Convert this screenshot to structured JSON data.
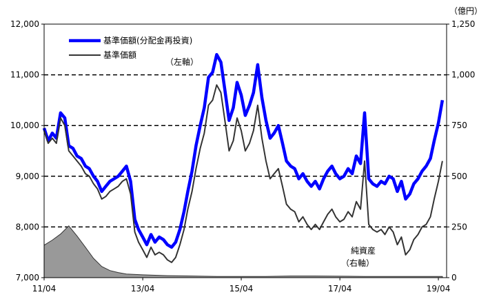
{
  "chart_data": {
    "type": "line",
    "x_tick_labels": [
      "11/04",
      "13/04",
      "15/04",
      "17/04",
      "19/04"
    ],
    "left_axis": {
      "ylim": [
        7000,
        12000
      ],
      "tick_labels": [
        "7,000",
        "8,000",
        "9,000",
        "10,000",
        "11,000",
        "12,000"
      ],
      "ticks": [
        7000,
        8000,
        9000,
        10000,
        11000,
        12000
      ],
      "annotation": "（左軸）"
    },
    "right_axis": {
      "ylim": [
        0,
        1250
      ],
      "tick_labels": [
        "0",
        "250",
        "500",
        "750",
        "1,000",
        "1,250"
      ],
      "unit": "（億円）",
      "annotation_line1": "純資産",
      "annotation_line2": "（右軸）"
    },
    "gridlines": "dashed horizontal",
    "legend": "top-left",
    "series": [
      {
        "name": "基準価額(分配金再投資)",
        "color": "#0000ff",
        "axis": "left",
        "points": [
          [
            "2011-04",
            9950
          ],
          [
            "2011-05",
            9700
          ],
          [
            "2011-06",
            9850
          ],
          [
            "2011-07",
            9750
          ],
          [
            "2011-08",
            10250
          ],
          [
            "2011-09",
            10150
          ],
          [
            "2011-10",
            9600
          ],
          [
            "2011-11",
            9550
          ],
          [
            "2011-12",
            9400
          ],
          [
            "2012-01",
            9350
          ],
          [
            "2012-02",
            9200
          ],
          [
            "2012-03",
            9150
          ],
          [
            "2012-04",
            9000
          ],
          [
            "2012-05",
            8900
          ],
          [
            "2012-06",
            8700
          ],
          [
            "2012-07",
            8800
          ],
          [
            "2012-08",
            8900
          ],
          [
            "2012-09",
            8950
          ],
          [
            "2012-10",
            9000
          ],
          [
            "2012-11",
            9100
          ],
          [
            "2012-12",
            9200
          ],
          [
            "2013-01",
            8900
          ],
          [
            "2013-02",
            8150
          ],
          [
            "2013-03",
            7950
          ],
          [
            "2013-04",
            7800
          ],
          [
            "2013-05",
            7650
          ],
          [
            "2013-06",
            7850
          ],
          [
            "2013-07",
            7700
          ],
          [
            "2013-08",
            7800
          ],
          [
            "2013-09",
            7750
          ],
          [
            "2013-10",
            7650
          ],
          [
            "2013-11",
            7600
          ],
          [
            "2013-12",
            7700
          ],
          [
            "2014-01",
            7950
          ],
          [
            "2014-02",
            8300
          ],
          [
            "2014-03",
            8700
          ],
          [
            "2014-04",
            9100
          ],
          [
            "2014-05",
            9600
          ],
          [
            "2014-06",
            10000
          ],
          [
            "2014-07",
            10350
          ],
          [
            "2014-08",
            10950
          ],
          [
            "2014-09",
            11050
          ],
          [
            "2014-10",
            11400
          ],
          [
            "2014-11",
            11250
          ],
          [
            "2014-12",
            10700
          ],
          [
            "2015-01",
            10100
          ],
          [
            "2015-02",
            10350
          ],
          [
            "2015-03",
            10850
          ],
          [
            "2015-04",
            10600
          ],
          [
            "2015-05",
            10200
          ],
          [
            "2015-06",
            10400
          ],
          [
            "2015-07",
            10650
          ],
          [
            "2015-08",
            11200
          ],
          [
            "2015-09",
            10550
          ],
          [
            "2015-10",
            10100
          ],
          [
            "2015-11",
            9750
          ],
          [
            "2015-12",
            9850
          ],
          [
            "2016-01",
            10000
          ],
          [
            "2016-02",
            9650
          ],
          [
            "2016-03",
            9300
          ],
          [
            "2016-04",
            9200
          ],
          [
            "2016-05",
            9150
          ],
          [
            "2016-06",
            8950
          ],
          [
            "2016-07",
            9050
          ],
          [
            "2016-08",
            8900
          ],
          [
            "2016-09",
            8800
          ],
          [
            "2016-10",
            8900
          ],
          [
            "2016-11",
            8750
          ],
          [
            "2016-12",
            8950
          ],
          [
            "2017-01",
            9100
          ],
          [
            "2017-02",
            9200
          ],
          [
            "2017-03",
            9050
          ],
          [
            "2017-04",
            8950
          ],
          [
            "2017-05",
            9000
          ],
          [
            "2017-06",
            9150
          ],
          [
            "2017-07",
            9050
          ],
          [
            "2017-08",
            9400
          ],
          [
            "2017-09",
            9250
          ],
          [
            "2017-10",
            10250
          ],
          [
            "2017-11",
            8950
          ],
          [
            "2017-12",
            8850
          ],
          [
            "2018-01",
            8800
          ],
          [
            "2018-02",
            8900
          ],
          [
            "2018-03",
            8850
          ],
          [
            "2018-04",
            9000
          ],
          [
            "2018-05",
            8950
          ],
          [
            "2018-06",
            8700
          ],
          [
            "2018-07",
            8900
          ],
          [
            "2018-08",
            8550
          ],
          [
            "2018-09",
            8650
          ],
          [
            "2018-10",
            8850
          ],
          [
            "2018-11",
            8950
          ],
          [
            "2018-12",
            9100
          ],
          [
            "2019-01",
            9200
          ],
          [
            "2019-02",
            9350
          ],
          [
            "2019-03",
            9700
          ],
          [
            "2019-04",
            10050
          ],
          [
            "2019-05",
            10500
          ]
        ]
      },
      {
        "name": "基準価額",
        "color": "#333333",
        "axis": "left",
        "points": [
          [
            "2011-04",
            9900
          ],
          [
            "2011-05",
            9650
          ],
          [
            "2011-06",
            9750
          ],
          [
            "2011-07",
            9650
          ],
          [
            "2011-08",
            10150
          ],
          [
            "2011-09",
            10000
          ],
          [
            "2011-10",
            9500
          ],
          [
            "2011-11",
            9400
          ],
          [
            "2011-12",
            9300
          ],
          [
            "2012-01",
            9200
          ],
          [
            "2012-02",
            9050
          ],
          [
            "2012-03",
            9000
          ],
          [
            "2012-04",
            8850
          ],
          [
            "2012-05",
            8750
          ],
          [
            "2012-06",
            8550
          ],
          [
            "2012-07",
            8600
          ],
          [
            "2012-08",
            8700
          ],
          [
            "2012-09",
            8750
          ],
          [
            "2012-10",
            8800
          ],
          [
            "2012-11",
            8900
          ],
          [
            "2012-12",
            8950
          ],
          [
            "2013-01",
            8650
          ],
          [
            "2013-02",
            7900
          ],
          [
            "2013-03",
            7700
          ],
          [
            "2013-04",
            7550
          ],
          [
            "2013-05",
            7400
          ],
          [
            "2013-06",
            7600
          ],
          [
            "2013-07",
            7450
          ],
          [
            "2013-08",
            7500
          ],
          [
            "2013-09",
            7450
          ],
          [
            "2013-10",
            7350
          ],
          [
            "2013-11",
            7300
          ],
          [
            "2013-12",
            7400
          ],
          [
            "2014-01",
            7650
          ],
          [
            "2014-02",
            7950
          ],
          [
            "2014-03",
            8350
          ],
          [
            "2014-04",
            8700
          ],
          [
            "2014-05",
            9150
          ],
          [
            "2014-06",
            9550
          ],
          [
            "2014-07",
            9850
          ],
          [
            "2014-08",
            10400
          ],
          [
            "2014-09",
            10500
          ],
          [
            "2014-10",
            10800
          ],
          [
            "2014-11",
            10650
          ],
          [
            "2014-12",
            10100
          ],
          [
            "2015-01",
            9500
          ],
          [
            "2015-02",
            9700
          ],
          [
            "2015-03",
            10150
          ],
          [
            "2015-04",
            9900
          ],
          [
            "2015-05",
            9500
          ],
          [
            "2015-06",
            9650
          ],
          [
            "2015-07",
            9900
          ],
          [
            "2015-08",
            10400
          ],
          [
            "2015-09",
            9750
          ],
          [
            "2015-10",
            9300
          ],
          [
            "2015-11",
            8950
          ],
          [
            "2015-12",
            9050
          ],
          [
            "2016-01",
            9150
          ],
          [
            "2016-02",
            8800
          ],
          [
            "2016-03",
            8450
          ],
          [
            "2016-04",
            8350
          ],
          [
            "2016-05",
            8300
          ],
          [
            "2016-06",
            8100
          ],
          [
            "2016-07",
            8200
          ],
          [
            "2016-08",
            8050
          ],
          [
            "2016-09",
            7950
          ],
          [
            "2016-10",
            8050
          ],
          [
            "2016-11",
            7950
          ],
          [
            "2016-12",
            8100
          ],
          [
            "2017-01",
            8250
          ],
          [
            "2017-02",
            8350
          ],
          [
            "2017-03",
            8200
          ],
          [
            "2017-04",
            8100
          ],
          [
            "2017-05",
            8150
          ],
          [
            "2017-06",
            8300
          ],
          [
            "2017-07",
            8200
          ],
          [
            "2017-08",
            8500
          ],
          [
            "2017-09",
            8350
          ],
          [
            "2017-10",
            9300
          ],
          [
            "2017-11",
            8050
          ],
          [
            "2017-12",
            7950
          ],
          [
            "2018-01",
            7900
          ],
          [
            "2018-02",
            7950
          ],
          [
            "2018-03",
            7850
          ],
          [
            "2018-04",
            8000
          ],
          [
            "2018-05",
            7900
          ],
          [
            "2018-06",
            7650
          ],
          [
            "2018-07",
            7800
          ],
          [
            "2018-08",
            7450
          ],
          [
            "2018-09",
            7550
          ],
          [
            "2018-10",
            7750
          ],
          [
            "2018-11",
            7850
          ],
          [
            "2018-12",
            8000
          ],
          [
            "2019-01",
            8050
          ],
          [
            "2019-02",
            8200
          ],
          [
            "2019-03",
            8550
          ],
          [
            "2019-04",
            8900
          ],
          [
            "2019-05",
            9300
          ]
        ]
      },
      {
        "name": "純資産",
        "color": "#999999",
        "axis": "right",
        "style": "area",
        "points": [
          [
            "2011-04",
            160
          ],
          [
            "2011-06",
            185
          ],
          [
            "2011-08",
            215
          ],
          [
            "2011-10",
            255
          ],
          [
            "2011-12",
            205
          ],
          [
            "2012-02",
            150
          ],
          [
            "2012-04",
            95
          ],
          [
            "2012-06",
            55
          ],
          [
            "2012-08",
            35
          ],
          [
            "2012-10",
            25
          ],
          [
            "2012-12",
            18
          ],
          [
            "2013-04",
            14
          ],
          [
            "2013-10",
            10
          ],
          [
            "2014-04",
            8
          ],
          [
            "2014-10",
            6
          ],
          [
            "2015-04",
            6
          ],
          [
            "2015-10",
            6
          ],
          [
            "2016-04",
            8
          ],
          [
            "2016-10",
            8
          ],
          [
            "2017-04",
            7
          ],
          [
            "2017-10",
            6
          ],
          [
            "2018-04",
            6
          ],
          [
            "2018-10",
            6
          ],
          [
            "2019-05",
            6
          ]
        ]
      }
    ]
  }
}
